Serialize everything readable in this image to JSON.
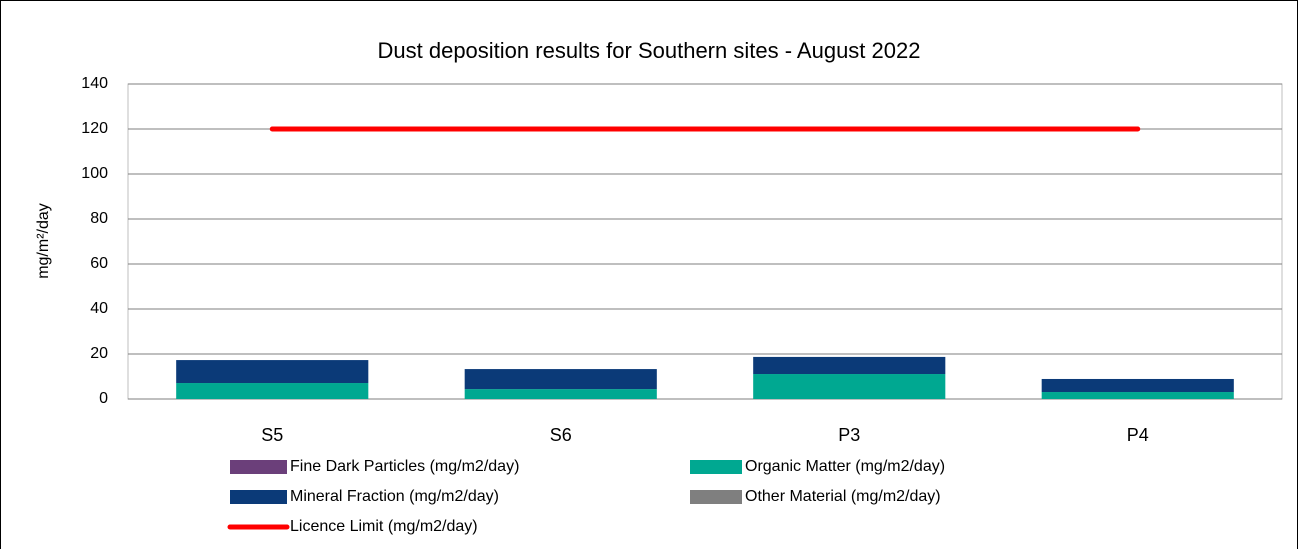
{
  "chart_data": {
    "type": "bar",
    "stacked": true,
    "title": "Dust deposition results for Southern sites - August 2022",
    "y_label": "mg/m²/day",
    "categories": [
      "S5",
      "S6",
      "P3",
      "P4"
    ],
    "series": [
      {
        "name": "Fine Dark Particles (mg/m2/day)",
        "color": "#6b3f7a",
        "values": [
          0,
          0,
          0,
          0
        ]
      },
      {
        "name": "Organic Matter (mg/m2/day)",
        "color": "#00a891",
        "values": [
          7.1,
          4.4,
          11.1,
          3.1
        ]
      },
      {
        "name": "Mineral Fraction (mg/m2/day)",
        "color": "#0b3a78",
        "values": [
          10.2,
          8.9,
          7.6,
          5.8
        ]
      },
      {
        "name": "Other Material (mg/m2/day)",
        "color": "#7f7f7f",
        "values": [
          0,
          0,
          0,
          0
        ]
      },
      {
        "name": "Licence Limit  (mg/m2/day)",
        "color": "#ff0000",
        "type": "line",
        "values": [
          120,
          120,
          120,
          120
        ]
      }
    ],
    "ylim": [
      0,
      140
    ],
    "yticks": [
      0,
      20,
      40,
      60,
      80,
      100,
      120,
      140
    ],
    "grid": true
  }
}
